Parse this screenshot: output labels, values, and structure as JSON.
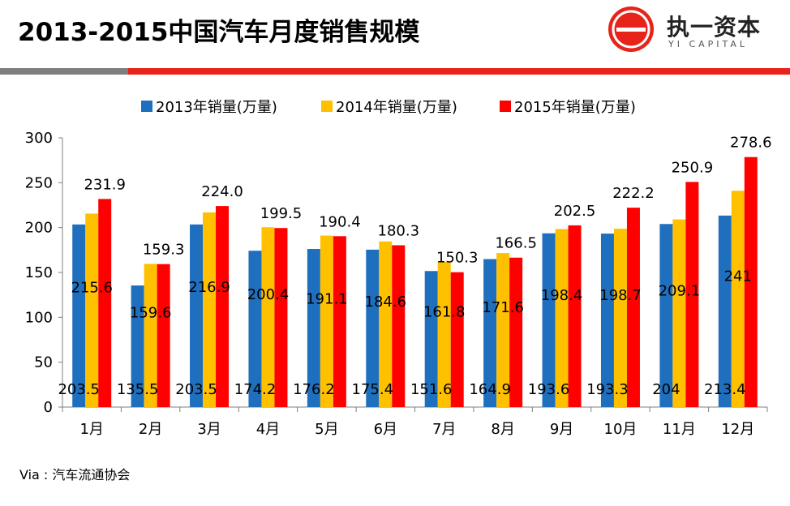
{
  "header": {
    "title": "2013-2015中国汽车月度销售规模",
    "logo_text": "执一资本",
    "logo_sub": "YI CAPITAL"
  },
  "colors": {
    "series_2013": "#1f6fbf",
    "series_2014": "#ffc000",
    "series_2015": "#ff0000",
    "accent": "#e8231a"
  },
  "source": "Via : 汽车流通协会",
  "chart_data": {
    "type": "bar",
    "title": "",
    "xlabel": "",
    "ylabel": "",
    "ylim": [
      0,
      300
    ],
    "yticks": [
      "0",
      "50",
      "100",
      "150",
      "200",
      "250",
      "300"
    ],
    "categories": [
      "1月",
      "2月",
      "3月",
      "4月",
      "5月",
      "6月",
      "7月",
      "8月",
      "9月",
      "10月",
      "11月",
      "12月"
    ],
    "series": [
      {
        "name": "2013年销量(万量)",
        "values": [
          203.5,
          135.5,
          203.5,
          174.2,
          176.2,
          175.4,
          151.6,
          164.9,
          193.6,
          193.3,
          204,
          213.4
        ],
        "labels": [
          "203.5",
          "135.5",
          "203.5",
          "174.2",
          "176.2",
          "175.4",
          "151.6",
          "164.9",
          "193.6",
          "193.3",
          "204",
          "213.4"
        ]
      },
      {
        "name": "2014年销量(万量)",
        "values": [
          215.6,
          159.6,
          216.9,
          200.4,
          191.1,
          184.6,
          161.8,
          171.6,
          198.4,
          198.7,
          209.1,
          241
        ],
        "labels": [
          "215.6",
          "159.6",
          "216.9",
          "200.4",
          "191.1",
          "184.6",
          "161.8",
          "171.6",
          "198.4",
          "198.7",
          "209.1",
          "241"
        ]
      },
      {
        "name": "2015年销量(万量)",
        "values": [
          231.9,
          159.3,
          224.0,
          199.5,
          190.4,
          180.3,
          150.3,
          166.5,
          202.5,
          222.2,
          250.9,
          278.6
        ],
        "labels": [
          "231.9",
          "159.3",
          "224.0",
          "199.5",
          "190.4",
          "180.3",
          "150.3",
          "166.5",
          "202.5",
          "222.2",
          "250.9",
          "278.6"
        ]
      }
    ],
    "legend_position": "top"
  }
}
